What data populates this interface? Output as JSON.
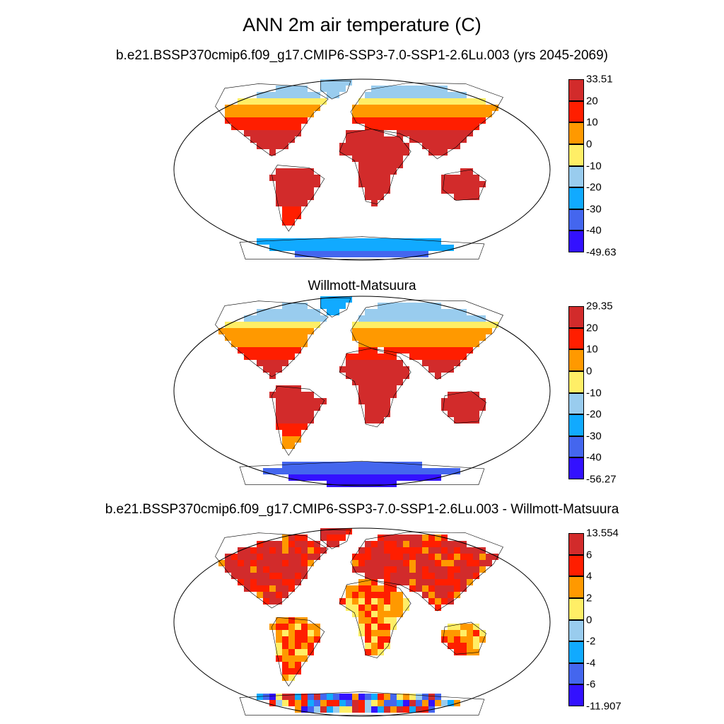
{
  "title": "ANN 2m air temperature (C)",
  "panels": [
    {
      "id": "model",
      "title": "b.e21.BSSP370cmip6.f09_g17.CMIP6-SSP3-7.0-SSP1-2.6Lu.003 (yrs 2045-2069)",
      "colorbar": {
        "labels": [
          "33.51",
          "20",
          "10",
          "0",
          "-10",
          "-20",
          "-30",
          "-40",
          "-49.63"
        ],
        "colors": [
          "#d22b2b",
          "#ff1e00",
          "#ff9900",
          "#ffee66",
          "#99ccee",
          "#11aaff",
          "#4466ee",
          "#3311ff"
        ]
      }
    },
    {
      "id": "observation",
      "title": "Willmott-Matsuura",
      "colorbar": {
        "labels": [
          "29.35",
          "20",
          "10",
          "0",
          "-10",
          "-20",
          "-30",
          "-40",
          "-56.27"
        ],
        "colors": [
          "#d22b2b",
          "#ff1e00",
          "#ff9900",
          "#ffee66",
          "#99ccee",
          "#11aaff",
          "#4466ee",
          "#3311ff"
        ]
      }
    },
    {
      "id": "difference",
      "title": "b.e21.BSSP370cmip6.f09_g17.CMIP6-SSP3-7.0-SSP1-2.6Lu.003 - Willmott-Matsuura",
      "colorbar": {
        "labels": [
          "13.554",
          "6",
          "4",
          "2",
          "0",
          "-2",
          "-4",
          "-6",
          "-11.907"
        ],
        "colors": [
          "#d22b2b",
          "#ff1e00",
          "#ff9900",
          "#ffee66",
          "#99ccee",
          "#11aaff",
          "#4466ee",
          "#3311ff"
        ]
      }
    }
  ]
}
